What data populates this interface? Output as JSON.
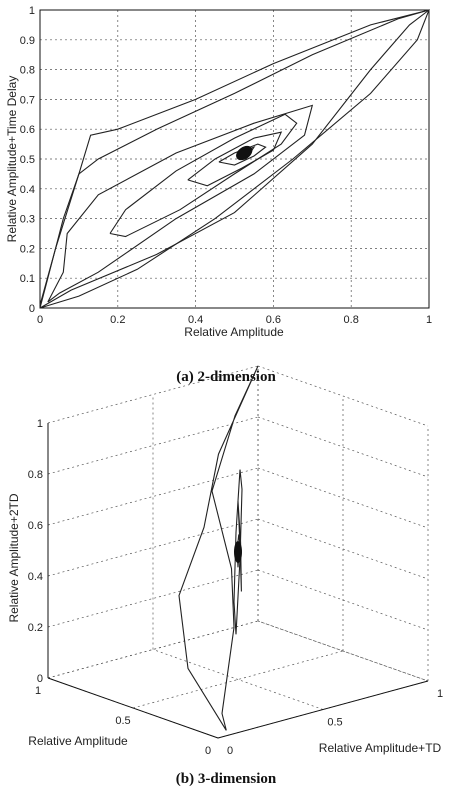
{
  "chart_data": [
    {
      "type": "line",
      "caption": "(a) 2-dimension",
      "xlabel": "Relative Amplitude",
      "ylabel": "Relative Amplitude+Time Delay",
      "xlim": [
        0,
        1
      ],
      "ylim": [
        0,
        1
      ],
      "grid": true,
      "x_ticks": [
        0,
        0.2,
        0.4,
        0.6,
        0.8,
        1
      ],
      "x_tick_labels": [
        "0",
        "0.2",
        "0.4",
        "0.6",
        "0.8",
        "1"
      ],
      "y_ticks": [
        0,
        0.1,
        0.2,
        0.3,
        0.4,
        0.5,
        0.6,
        0.7,
        0.8,
        0.9,
        1
      ],
      "y_tick_labels": [
        "0",
        "0.1",
        "0.2",
        "0.3",
        "0.4",
        "0.5",
        "0.6",
        "0.7",
        "0.8",
        "0.9",
        "1"
      ],
      "series": [
        {
          "values": [
            [
              0,
              0
            ],
            [
              0.02,
              0.1
            ],
            [
              0.06,
              0.3
            ],
            [
              0.1,
              0.45
            ],
            [
              0.15,
              0.5
            ],
            [
              0.3,
              0.6
            ],
            [
              0.5,
              0.72
            ],
            [
              0.7,
              0.85
            ],
            [
              0.92,
              0.97
            ],
            [
              1,
              1
            ],
            [
              0.97,
              0.9
            ],
            [
              0.85,
              0.72
            ],
            [
              0.65,
              0.5
            ],
            [
              0.45,
              0.3
            ],
            [
              0.25,
              0.13
            ],
            [
              0.1,
              0.04
            ],
            [
              0,
              0
            ]
          ]
        },
        {
          "values": [
            [
              0,
              0.01
            ],
            [
              0.04,
              0.2
            ],
            [
              0.1,
              0.45
            ],
            [
              0.13,
              0.58
            ],
            [
              0.2,
              0.6
            ],
            [
              0.4,
              0.7
            ],
            [
              0.6,
              0.82
            ],
            [
              0.85,
              0.95
            ],
            [
              1,
              1
            ]
          ]
        },
        {
          "values": [
            [
              0,
              0
            ],
            [
              0.08,
              0.06
            ],
            [
              0.3,
              0.18
            ],
            [
              0.5,
              0.32
            ],
            [
              0.7,
              0.55
            ],
            [
              0.85,
              0.8
            ],
            [
              0.95,
              0.95
            ],
            [
              1,
              1
            ]
          ]
        },
        {
          "values": [
            [
              0.02,
              0.02
            ],
            [
              0.06,
              0.12
            ],
            [
              0.07,
              0.25
            ],
            [
              0.15,
              0.38
            ],
            [
              0.35,
              0.52
            ],
            [
              0.55,
              0.62
            ],
            [
              0.7,
              0.68
            ],
            [
              0.68,
              0.58
            ],
            [
              0.55,
              0.45
            ],
            [
              0.35,
              0.3
            ],
            [
              0.15,
              0.12
            ],
            [
              0.05,
              0.05
            ],
            [
              0.02,
              0.02
            ]
          ]
        },
        {
          "values": [
            [
              0.18,
              0.25
            ],
            [
              0.22,
              0.33
            ],
            [
              0.35,
              0.46
            ],
            [
              0.5,
              0.57
            ],
            [
              0.63,
              0.65
            ],
            [
              0.66,
              0.62
            ],
            [
              0.62,
              0.55
            ],
            [
              0.5,
              0.45
            ],
            [
              0.36,
              0.33
            ],
            [
              0.22,
              0.24
            ],
            [
              0.18,
              0.25
            ]
          ]
        },
        {
          "values": [
            [
              0.38,
              0.43
            ],
            [
              0.45,
              0.5
            ],
            [
              0.55,
              0.57
            ],
            [
              0.62,
              0.59
            ],
            [
              0.6,
              0.53
            ],
            [
              0.52,
              0.47
            ],
            [
              0.43,
              0.41
            ],
            [
              0.38,
              0.43
            ]
          ]
        },
        {
          "values": [
            [
              0.46,
              0.49
            ],
            [
              0.5,
              0.52
            ],
            [
              0.56,
              0.55
            ],
            [
              0.58,
              0.54
            ],
            [
              0.55,
              0.51
            ],
            [
              0.5,
              0.48
            ],
            [
              0.46,
              0.49
            ]
          ]
        },
        {
          "values": [
            [
              0.51,
              0.51
            ],
            [
              0.53,
              0.53
            ],
            [
              0.55,
              0.54
            ],
            [
              0.54,
              0.52
            ],
            [
              0.52,
              0.5
            ],
            [
              0.51,
              0.51
            ]
          ]
        }
      ]
    },
    {
      "type": "line3d",
      "caption": "(b) 3-dimension",
      "xlabel": "Relative Amplitude",
      "ylabel": "Relative Amplitude+TD",
      "zlabel": "Relative Amplitude+2TD",
      "xlim": [
        0,
        1
      ],
      "ylim": [
        0,
        1
      ],
      "zlim": [
        0,
        1
      ],
      "grid": true,
      "x_tick_labels": [
        "0",
        "0.5",
        "1"
      ],
      "y_tick_labels": [
        "0",
        "0.5",
        "1"
      ],
      "z_tick_labels": [
        "0",
        "0.2",
        "0.4",
        "0.6",
        "0.8",
        "1"
      ],
      "series": [
        {
          "values": [
            [
              0.05,
              0.08,
              0.0
            ],
            [
              0.3,
              0.1,
              0.18
            ],
            [
              0.6,
              0.3,
              0.35
            ],
            [
              0.7,
              0.5,
              0.55
            ],
            [
              0.8,
              0.65,
              0.78
            ],
            [
              1,
              1,
              1
            ],
            [
              0.95,
              0.85,
              0.85
            ],
            [
              0.9,
              0.7,
              0.6
            ],
            [
              0.6,
              0.55,
              0.4
            ],
            [
              0.4,
              0.4,
              0.25
            ],
            [
              0.1,
              0.1,
              0.05
            ],
            [
              0.05,
              0.08,
              0.0
            ]
          ]
        },
        {
          "values": [
            [
              0.45,
              0.45,
              0.2
            ],
            [
              0.55,
              0.55,
              0.45
            ],
            [
              0.6,
              0.6,
              0.7
            ],
            [
              0.55,
              0.55,
              0.8
            ],
            [
              0.45,
              0.45,
              0.6
            ],
            [
              0.4,
              0.4,
              0.35
            ],
            [
              0.45,
              0.45,
              0.2
            ]
          ]
        },
        {
          "values": [
            [
              0.48,
              0.5,
              0.35
            ],
            [
              0.55,
              0.55,
              0.5
            ],
            [
              0.56,
              0.55,
              0.65
            ],
            [
              0.5,
              0.5,
              0.7
            ],
            [
              0.46,
              0.48,
              0.55
            ],
            [
              0.48,
              0.5,
              0.35
            ]
          ]
        },
        {
          "values": [
            [
              0.5,
              0.5,
              0.44
            ],
            [
              0.53,
              0.52,
              0.5
            ],
            [
              0.52,
              0.52,
              0.56
            ],
            [
              0.49,
              0.5,
              0.54
            ],
            [
              0.5,
              0.5,
              0.44
            ]
          ]
        }
      ]
    }
  ]
}
